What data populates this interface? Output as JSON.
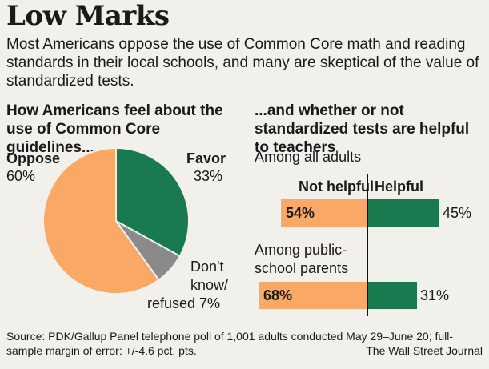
{
  "title": "Low Marks",
  "subtitle": "Most Americans oppose the use of Common Core math and reading standards in their local schools, and many are skeptical of the value of standardized tests.",
  "chart_data": [
    {
      "type": "pie",
      "title": "How Americans feel about the use of Common Core guidelines...",
      "slices": [
        {
          "name": "Favor",
          "value": 33,
          "label": "33%",
          "color": "#1a7a4f"
        },
        {
          "name": "Don't know/ refused",
          "value": 7,
          "label": "7%",
          "color": "#8a8a8a"
        },
        {
          "name": "Oppose",
          "value": 60,
          "label": "60%",
          "color": "#f9a866"
        }
      ]
    },
    {
      "type": "bar",
      "title": "...and whether or not standardized tests are helpful to teachers",
      "orientation": "horizontal-diverging",
      "column_labels": {
        "left": "Not helpful",
        "right": "Helpful"
      },
      "xlim": [
        -100,
        100
      ],
      "groups": [
        {
          "name": "Among all adults",
          "not_helpful": 54,
          "helpful": 45,
          "not_helpful_label": "54%",
          "helpful_label": "45%"
        },
        {
          "name": "Among public-school parents",
          "not_helpful": 68,
          "helpful": 31,
          "not_helpful_label": "68%",
          "helpful_label": "31%"
        }
      ],
      "colors": {
        "not_helpful": "#f9a866",
        "helpful": "#1a7a4f"
      }
    }
  ],
  "pie_labels": {
    "oppose_name": "Oppose",
    "oppose_value": "60%",
    "favor_name": "Favor",
    "favor_value": "33%",
    "dk_line1": "Don't",
    "dk_line2": "know/",
    "dk_line3": "refused 7%"
  },
  "bar_labels": {
    "group1_name": "Among all adults",
    "group2_line1": "Among public-",
    "group2_line2": "school parents"
  },
  "source": "Source: PDK/Gallup Panel telephone poll of 1,001 adults conducted May 29–June 20; full-sample margin of error: +/-4.6 pct. pts.",
  "credit": "The Wall Street Journal"
}
